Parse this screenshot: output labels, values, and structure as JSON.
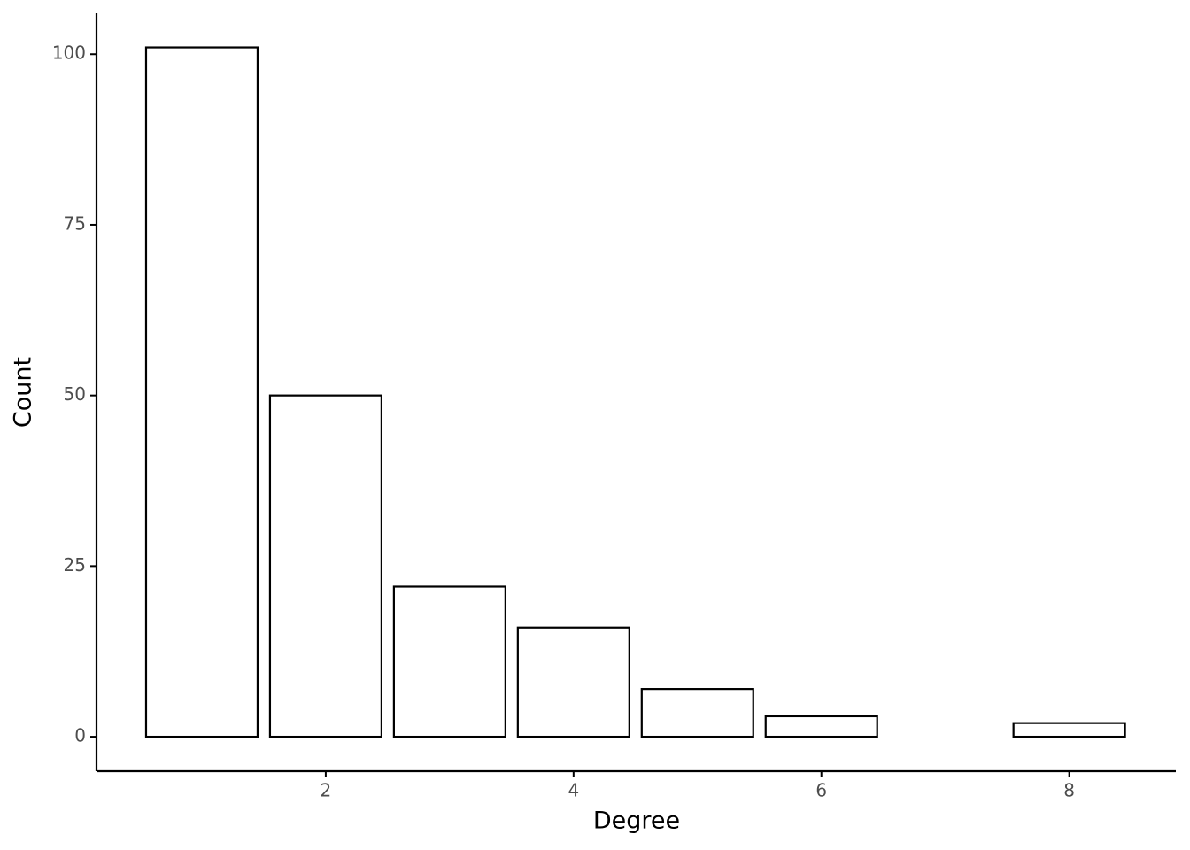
{
  "chart_data": {
    "type": "bar",
    "x_label": "Degree",
    "y_label": "Count",
    "x": [
      1,
      2,
      3,
      4,
      5,
      6,
      8
    ],
    "values": [
      101,
      50,
      22,
      16,
      7,
      3,
      2
    ],
    "color": "#ffffff",
    "edge_color": "#000000",
    "xlim": [
      0.15,
      8.86
    ],
    "xticks": [
      2,
      4,
      6,
      8
    ],
    "ylim": [
      -5.05,
      106
    ],
    "yticks": [
      0,
      25,
      50,
      75,
      100
    ],
    "grid": false
  }
}
